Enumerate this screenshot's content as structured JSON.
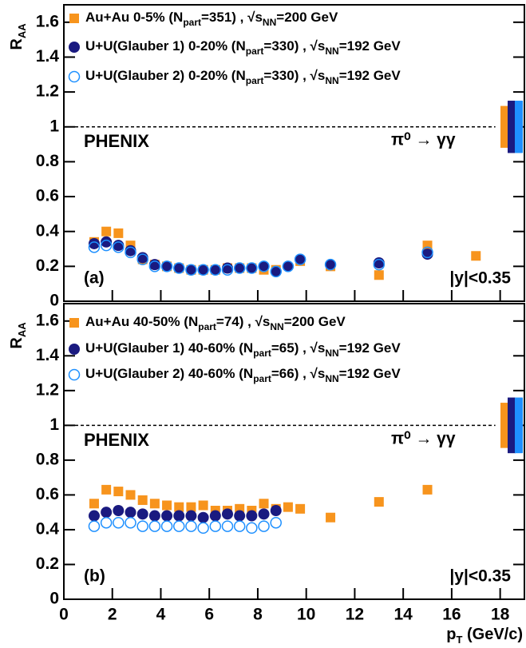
{
  "chart_data": [
    {
      "type": "scatter",
      "ylabel": [
        "R",
        "AA"
      ],
      "panel_label": "(a)",
      "experiment": "PHENIX",
      "channel": "π⁰ → γγ",
      "rapidity": "|y|<0.35",
      "xlim": [
        0,
        19
      ],
      "ylim": [
        0,
        1.7
      ],
      "xticks": [
        0,
        2,
        4,
        6,
        8,
        10,
        12,
        14,
        16,
        18
      ],
      "yticks": [
        0,
        0.2,
        0.4,
        0.6,
        0.8,
        1,
        1.2,
        1.4,
        1.6
      ],
      "reference_line": 1,
      "series": [
        {
          "name": [
            "Au+Au   0-5% (N",
            "part",
            "=351) , √s",
            "NN",
            "=200 GeV"
          ],
          "color": "#f7941d",
          "marker": "square",
          "norm_uncertainty": 0.12,
          "x": [
            1.25,
            1.75,
            2.25,
            2.75,
            3.25,
            3.75,
            4.25,
            4.75,
            5.25,
            5.75,
            6.25,
            6.75,
            7.25,
            7.75,
            8.25,
            8.75,
            9.75,
            11,
            13,
            15,
            17
          ],
          "values": [
            0.34,
            0.4,
            0.39,
            0.32,
            0.24,
            0.21,
            0.2,
            0.19,
            0.18,
            0.18,
            0.18,
            0.19,
            0.19,
            0.19,
            0.18,
            0.18,
            0.23,
            0.2,
            0.15,
            0.32,
            0.26
          ]
        },
        {
          "name": [
            "U+U(Glauber 1)   0-20% (N",
            "part",
            "=330) , √s",
            "NN",
            "=192 GeV"
          ],
          "color": "#1a1a80",
          "marker": "circle",
          "norm_uncertainty": 0.15,
          "x": [
            1.25,
            1.75,
            2.25,
            2.75,
            3.25,
            3.75,
            4.25,
            4.75,
            5.25,
            5.75,
            6.25,
            6.75,
            7.25,
            7.75,
            8.25,
            8.75,
            9.25,
            9.75,
            11,
            13,
            15
          ],
          "values": [
            0.33,
            0.34,
            0.32,
            0.29,
            0.25,
            0.21,
            0.2,
            0.19,
            0.18,
            0.18,
            0.18,
            0.19,
            0.19,
            0.19,
            0.2,
            0.17,
            0.2,
            0.24,
            0.21,
            0.22,
            0.27
          ]
        },
        {
          "name": [
            "U+U(Glauber 2)   0-20% (N",
            "part",
            "=330) , √s",
            "NN",
            "=192 GeV"
          ],
          "color": "#1e90ff",
          "marker": "open-circle",
          "norm_uncertainty": 0.15,
          "x": [
            1.25,
            1.75,
            2.25,
            2.75,
            3.25,
            3.75,
            4.25,
            4.75,
            5.25,
            5.75,
            6.25,
            6.75,
            7.25,
            7.75,
            8.25,
            8.75,
            9.25,
            9.75,
            11,
            13,
            15
          ],
          "values": [
            0.31,
            0.32,
            0.31,
            0.28,
            0.24,
            0.2,
            0.2,
            0.19,
            0.18,
            0.18,
            0.18,
            0.18,
            0.19,
            0.19,
            0.2,
            0.17,
            0.2,
            0.24,
            0.21,
            0.21,
            0.28
          ]
        }
      ]
    },
    {
      "type": "scatter",
      "ylabel": [
        "R",
        "AA"
      ],
      "xlabel": [
        "p",
        "T",
        " (GeV/c)"
      ],
      "panel_label": "(b)",
      "experiment": "PHENIX",
      "channel": "π⁰ → γγ",
      "rapidity": "|y|<0.35",
      "xlim": [
        0,
        19
      ],
      "ylim": [
        0,
        1.7
      ],
      "xticks": [
        0,
        2,
        4,
        6,
        8,
        10,
        12,
        14,
        16,
        18
      ],
      "yticks": [
        0,
        0.2,
        0.4,
        0.6,
        0.8,
        1,
        1.2,
        1.4,
        1.6
      ],
      "reference_line": 1,
      "series": [
        {
          "name": [
            "Au+Au 40-50% (N",
            "part",
            "=74) , √s",
            "NN",
            "=200 GeV"
          ],
          "color": "#f7941d",
          "marker": "square",
          "norm_uncertainty": 0.13,
          "x": [
            1.25,
            1.75,
            2.25,
            2.75,
            3.25,
            3.75,
            4.25,
            4.75,
            5.25,
            5.75,
            6.25,
            6.75,
            7.25,
            7.75,
            8.25,
            8.75,
            9.25,
            9.75,
            11,
            13,
            15
          ],
          "values": [
            0.55,
            0.63,
            0.62,
            0.6,
            0.57,
            0.55,
            0.54,
            0.53,
            0.53,
            0.54,
            0.51,
            0.51,
            0.52,
            0.51,
            0.55,
            0.52,
            0.53,
            0.52,
            0.47,
            0.56,
            0.63
          ]
        },
        {
          "name": [
            "U+U(Glauber 1) 40-60% (N",
            "part",
            "=65) , √s",
            "NN",
            "=192 GeV"
          ],
          "color": "#1a1a80",
          "marker": "circle",
          "norm_uncertainty": 0.16,
          "x": [
            1.25,
            1.75,
            2.25,
            2.75,
            3.25,
            3.75,
            4.25,
            4.75,
            5.25,
            5.75,
            6.25,
            6.75,
            7.25,
            7.75,
            8.25,
            8.75
          ],
          "values": [
            0.48,
            0.5,
            0.51,
            0.5,
            0.49,
            0.48,
            0.48,
            0.48,
            0.48,
            0.47,
            0.48,
            0.49,
            0.48,
            0.48,
            0.49,
            0.51
          ]
        },
        {
          "name": [
            "U+U(Glauber 2) 40-60% (N",
            "part",
            "=66) , √s",
            "NN",
            "=192 GeV"
          ],
          "color": "#1e90ff",
          "marker": "open-circle",
          "norm_uncertainty": 0.16,
          "x": [
            1.25,
            1.75,
            2.25,
            2.75,
            3.25,
            3.75,
            4.25,
            4.75,
            5.25,
            5.75,
            6.25,
            6.75,
            7.25,
            7.75,
            8.25,
            8.75
          ],
          "values": [
            0.42,
            0.44,
            0.44,
            0.44,
            0.42,
            0.42,
            0.42,
            0.42,
            0.42,
            0.41,
            0.42,
            0.42,
            0.42,
            0.41,
            0.42,
            0.44
          ]
        }
      ]
    }
  ]
}
